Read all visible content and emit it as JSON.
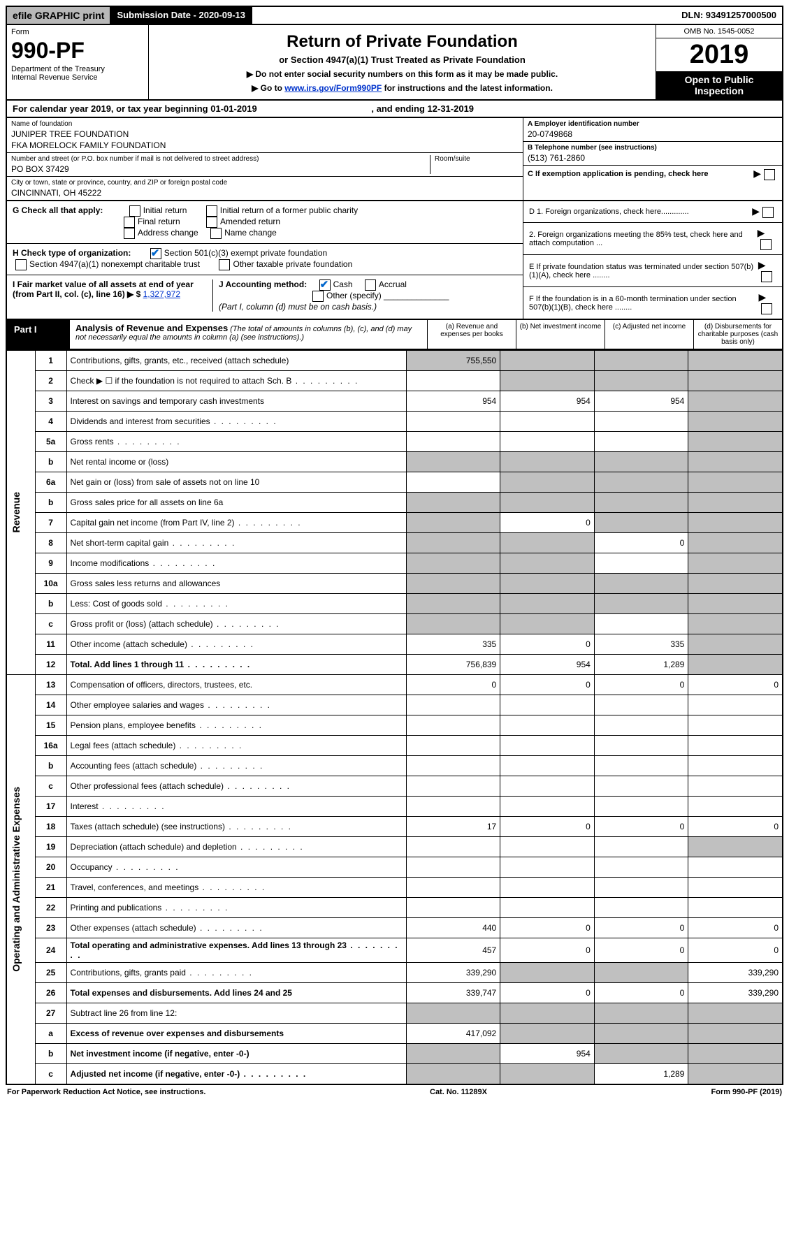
{
  "top": {
    "efile": "efile GRAPHIC print",
    "sub_date_label": "Submission Date - 2020-09-13",
    "dln": "DLN: 93491257000500"
  },
  "header": {
    "form_word": "Form",
    "form_no": "990-PF",
    "dept": "Department of the Treasury",
    "irs": "Internal Revenue Service",
    "title": "Return of Private Foundation",
    "subtitle": "or Section 4947(a)(1) Trust Treated as Private Foundation",
    "note1": "▶ Do not enter social security numbers on this form as it may be made public.",
    "note2_pre": "▶ Go to ",
    "note2_link": "www.irs.gov/Form990PF",
    "note2_post": " for instructions and the latest information.",
    "omb": "OMB No. 1545-0052",
    "year": "2019",
    "open": "Open to Public Inspection"
  },
  "cal": {
    "text_pre": "For calendar year 2019, or tax year beginning ",
    "begin": "01-01-2019",
    "mid": " , and ending ",
    "end": "12-31-2019"
  },
  "info": {
    "name_label": "Name of foundation",
    "name1": "JUNIPER TREE FOUNDATION",
    "name2": "FKA MORELOCK FAMILY FOUNDATION",
    "addr_label": "Number and street (or P.O. box number if mail is not delivered to street address)",
    "room_label": "Room/suite",
    "addr": "PO BOX 37429",
    "city_label": "City or town, state or province, country, and ZIP or foreign postal code",
    "city": "CINCINNATI, OH  45222",
    "ein_label": "A Employer identification number",
    "ein": "20-0749868",
    "tel_label": "B Telephone number (see instructions)",
    "tel": "(513) 761-2860",
    "c_label": "C If exemption application is pending, check here"
  },
  "g": {
    "label": "G Check all that apply:",
    "opts": [
      "Initial return",
      "Initial return of a former public charity",
      "Final return",
      "Amended return",
      "Address change",
      "Name change"
    ]
  },
  "h": {
    "label": "H Check type of organization:",
    "opt1": "Section 501(c)(3) exempt private foundation",
    "opt2": "Section 4947(a)(1) nonexempt charitable trust",
    "opt3": "Other taxable private foundation"
  },
  "i": {
    "label": "I Fair market value of all assets at end of year (from Part II, col. (c), line 16) ▶ $",
    "value": "1,327,972"
  },
  "j": {
    "label": "J Accounting method:",
    "opt1": "Cash",
    "opt2": "Accrual",
    "opt3": "Other (specify)",
    "note": "(Part I, column (d) must be on cash basis.)"
  },
  "d": {
    "d1": "D 1. Foreign organizations, check here.............",
    "d2": "2. Foreign organizations meeting the 85% test, check here and attach computation ...",
    "e": "E  If private foundation status was terminated under section 507(b)(1)(A), check here ........",
    "f": "F  If the foundation is in a 60-month termination under section 507(b)(1)(B), check here ........"
  },
  "part1": {
    "label": "Part I",
    "title": "Analysis of Revenue and Expenses",
    "note": "(The total of amounts in columns (b), (c), and (d) may not necessarily equal the amounts in column (a) (see instructions).)",
    "col_a": "(a) Revenue and expenses per books",
    "col_b": "(b) Net investment income",
    "col_c": "(c) Adjusted net income",
    "col_d": "(d) Disbursements for charitable purposes (cash basis only)"
  },
  "side": {
    "revenue": "Revenue",
    "expenses": "Operating and Administrative Expenses"
  },
  "rows": [
    {
      "n": "1",
      "d": "Contributions, gifts, grants, etc., received (attach schedule)",
      "a": "755,550",
      "b": "",
      "c": "",
      "as": true,
      "bs": true,
      "cs": true,
      "ds": true
    },
    {
      "n": "2",
      "d": "Check ▶ ☐ if the foundation is not required to attach Sch. B",
      "a": "",
      "b": "",
      "c": "",
      "as": false,
      "bs": true,
      "cs": true,
      "ds": true,
      "dots": true
    },
    {
      "n": "3",
      "d": "Interest on savings and temporary cash investments",
      "a": "954",
      "b": "954",
      "c": "954",
      "ds": true
    },
    {
      "n": "4",
      "d": "Dividends and interest from securities",
      "a": "",
      "b": "",
      "c": "",
      "ds": true,
      "dots": true
    },
    {
      "n": "5a",
      "d": "Gross rents",
      "a": "",
      "b": "",
      "c": "",
      "ds": true,
      "dots": true
    },
    {
      "n": "b",
      "d": "Net rental income or (loss)",
      "a": "",
      "b": "",
      "c": "",
      "as": true,
      "bs": true,
      "cs": true,
      "ds": true
    },
    {
      "n": "6a",
      "d": "Net gain or (loss) from sale of assets not on line 10",
      "a": "",
      "b": "",
      "c": "",
      "bs": true,
      "cs": true,
      "ds": true
    },
    {
      "n": "b",
      "d": "Gross sales price for all assets on line 6a",
      "a": "",
      "b": "",
      "c": "",
      "as": true,
      "bs": true,
      "cs": true,
      "ds": true
    },
    {
      "n": "7",
      "d": "Capital gain net income (from Part IV, line 2)",
      "a": "",
      "b": "0",
      "c": "",
      "as": true,
      "cs": true,
      "ds": true,
      "dots": true
    },
    {
      "n": "8",
      "d": "Net short-term capital gain",
      "a": "",
      "b": "",
      "c": "0",
      "as": true,
      "bs": true,
      "ds": true,
      "dots": true
    },
    {
      "n": "9",
      "d": "Income modifications",
      "a": "",
      "b": "",
      "c": "",
      "as": true,
      "bs": true,
      "ds": true,
      "dots": true
    },
    {
      "n": "10a",
      "d": "Gross sales less returns and allowances",
      "a": "",
      "b": "",
      "c": "",
      "as": true,
      "bs": true,
      "cs": true,
      "ds": true
    },
    {
      "n": "b",
      "d": "Less: Cost of goods sold",
      "a": "",
      "b": "",
      "c": "",
      "as": true,
      "bs": true,
      "cs": true,
      "ds": true,
      "dots": true
    },
    {
      "n": "c",
      "d": "Gross profit or (loss) (attach schedule)",
      "a": "",
      "b": "",
      "c": "",
      "as": true,
      "bs": true,
      "ds": true,
      "dots": true
    },
    {
      "n": "11",
      "d": "Other income (attach schedule)",
      "a": "335",
      "b": "0",
      "c": "335",
      "ds": true,
      "dots": true
    },
    {
      "n": "12",
      "d": "Total. Add lines 1 through 11",
      "a": "756,839",
      "b": "954",
      "c": "1,289",
      "ds": true,
      "bold": true,
      "dots": true
    }
  ],
  "exp_rows": [
    {
      "n": "13",
      "d": "Compensation of officers, directors, trustees, etc.",
      "a": "0",
      "b": "0",
      "c": "0",
      "dd": "0"
    },
    {
      "n": "14",
      "d": "Other employee salaries and wages",
      "dots": true
    },
    {
      "n": "15",
      "d": "Pension plans, employee benefits",
      "dots": true
    },
    {
      "n": "16a",
      "d": "Legal fees (attach schedule)",
      "dots": true
    },
    {
      "n": "b",
      "d": "Accounting fees (attach schedule)",
      "dots": true
    },
    {
      "n": "c",
      "d": "Other professional fees (attach schedule)",
      "dots": true
    },
    {
      "n": "17",
      "d": "Interest",
      "dots": true
    },
    {
      "n": "18",
      "d": "Taxes (attach schedule) (see instructions)",
      "a": "17",
      "b": "0",
      "c": "0",
      "dd": "0",
      "dots": true
    },
    {
      "n": "19",
      "d": "Depreciation (attach schedule) and depletion",
      "ds": true,
      "dots": true
    },
    {
      "n": "20",
      "d": "Occupancy",
      "dots": true
    },
    {
      "n": "21",
      "d": "Travel, conferences, and meetings",
      "dots": true
    },
    {
      "n": "22",
      "d": "Printing and publications",
      "dots": true
    },
    {
      "n": "23",
      "d": "Other expenses (attach schedule)",
      "a": "440",
      "b": "0",
      "c": "0",
      "dd": "0",
      "dots": true
    },
    {
      "n": "24",
      "d": "Total operating and administrative expenses. Add lines 13 through 23",
      "a": "457",
      "b": "0",
      "c": "0",
      "dd": "0",
      "bold": true,
      "dots": true
    },
    {
      "n": "25",
      "d": "Contributions, gifts, grants paid",
      "a": "339,290",
      "dd": "339,290",
      "bs": true,
      "cs": true,
      "dots": true
    },
    {
      "n": "26",
      "d": "Total expenses and disbursements. Add lines 24 and 25",
      "a": "339,747",
      "b": "0",
      "c": "0",
      "dd": "339,290",
      "bold": true
    },
    {
      "n": "27",
      "d": "Subtract line 26 from line 12:",
      "as": true,
      "bs": true,
      "cs": true,
      "ds": true
    },
    {
      "n": "a",
      "d": "Excess of revenue over expenses and disbursements",
      "a": "417,092",
      "bs": true,
      "cs": true,
      "ds": true,
      "bold": true
    },
    {
      "n": "b",
      "d": "Net investment income (if negative, enter -0-)",
      "b": "954",
      "as": true,
      "cs": true,
      "ds": true,
      "bold": true
    },
    {
      "n": "c",
      "d": "Adjusted net income (if negative, enter -0-)",
      "c": "1,289",
      "as": true,
      "bs": true,
      "ds": true,
      "bold": true,
      "dots": true
    }
  ],
  "footer": {
    "left": "For Paperwork Reduction Act Notice, see instructions.",
    "mid": "Cat. No. 11289X",
    "right": "Form 990-PF (2019)"
  }
}
